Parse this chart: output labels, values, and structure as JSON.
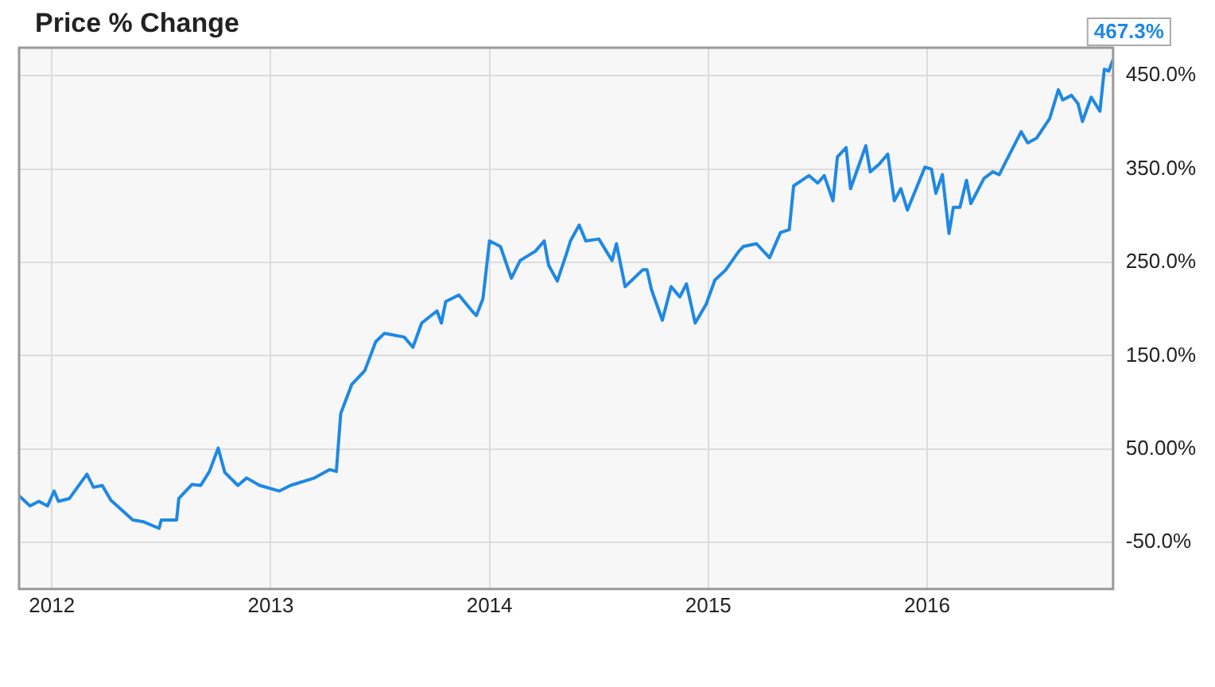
{
  "chart_data": {
    "type": "line",
    "title": "Price % Change",
    "series": [
      {
        "color": "#1e88e5",
        "x": [
          2011.85,
          2011.9,
          2011.94,
          2011.98,
          2012.01,
          2012.03,
          2012.08,
          2012.16,
          2012.19,
          2012.23,
          2012.27,
          2012.37,
          2012.42,
          2012.49,
          2012.5,
          2012.57,
          2012.58,
          2012.64,
          2012.68,
          2012.72,
          2012.76,
          2012.79,
          2012.85,
          2012.89,
          2012.95,
          2013.04,
          2013.09,
          2013.2,
          2013.27,
          2013.3,
          2013.32,
          2013.37,
          2013.43,
          2013.48,
          2013.52,
          2013.61,
          2013.65,
          2013.69,
          2013.76,
          2013.78,
          2013.8,
          2013.86,
          2013.92,
          2013.94,
          2013.97,
          2014.0,
          2014.05,
          2014.1,
          2014.14,
          2014.21,
          2014.25,
          2014.27,
          2014.31,
          2014.35,
          2014.37,
          2014.41,
          2014.44,
          2014.5,
          2014.56,
          2014.58,
          2014.62,
          2014.7,
          2014.72,
          2014.74,
          2014.79,
          2014.83,
          2014.87,
          2014.9,
          2014.94,
          2014.99,
          2015.03,
          2015.08,
          2015.14,
          2015.16,
          2015.22,
          2015.28,
          2015.33,
          2015.37,
          2015.39,
          2015.46,
          2015.5,
          2015.53,
          2015.57,
          2015.59,
          2015.63,
          2015.65,
          2015.72,
          2015.74,
          2015.78,
          2015.82,
          2015.85,
          2015.88,
          2015.91,
          2015.99,
          2016.02,
          2016.04,
          2016.07,
          2016.1,
          2016.12,
          2016.15,
          2016.18,
          2016.2,
          2016.26,
          2016.3,
          2016.33,
          2016.36,
          2016.43,
          2016.46,
          2016.5,
          2016.56,
          2016.6,
          2016.62,
          2016.66,
          2016.69,
          2016.71,
          2016.75,
          2016.79,
          2016.81,
          2016.83,
          2016.85
        ],
        "values": [
          0,
          -11,
          -6,
          -11,
          5,
          -6,
          -3,
          23,
          9,
          11,
          -5,
          -26,
          -28,
          -35,
          -26,
          -26,
          -3,
          12,
          11,
          26,
          51,
          25,
          11,
          19,
          11,
          5,
          11,
          19,
          28,
          26,
          88,
          119,
          134,
          165,
          174,
          170,
          159,
          185,
          198,
          185,
          208,
          215,
          198,
          193,
          211,
          273,
          267,
          233,
          252,
          262,
          273,
          247,
          230,
          258,
          273,
          290,
          273,
          275,
          252,
          270,
          224,
          242,
          242,
          221,
          188,
          224,
          213,
          227,
          185,
          205,
          231,
          242,
          262,
          267,
          270,
          255,
          282,
          285,
          332,
          343,
          335,
          343,
          316,
          363,
          373,
          329,
          375,
          347,
          355,
          366,
          316,
          329,
          306,
          352,
          350,
          324,
          344,
          281,
          309,
          309,
          338,
          313,
          340,
          347,
          344,
          358,
          390,
          378,
          383,
          404,
          435,
          424,
          429,
          420,
          401,
          427,
          412,
          457,
          455,
          467.3
        ]
      }
    ],
    "xlim": [
      2011.85,
      2016.85
    ],
    "xticks": [
      2012,
      2013,
      2014,
      2015,
      2016
    ],
    "ylim": [
      -100,
      480
    ],
    "yticks": [
      {
        "value": -50,
        "label": "-50.0%"
      },
      {
        "value": 50,
        "label": "50.00%"
      },
      {
        "value": 150,
        "label": "150.0%"
      },
      {
        "value": 250,
        "label": "250.0%"
      },
      {
        "value": 350,
        "label": "350.0%"
      },
      {
        "value": 450,
        "label": "450.0%"
      }
    ],
    "grid": true,
    "legend": false,
    "marker": "none",
    "line_style": "solid",
    "annotations": [
      {
        "text": "467.3%",
        "x": 2016.85,
        "y": 467.3
      }
    ]
  }
}
